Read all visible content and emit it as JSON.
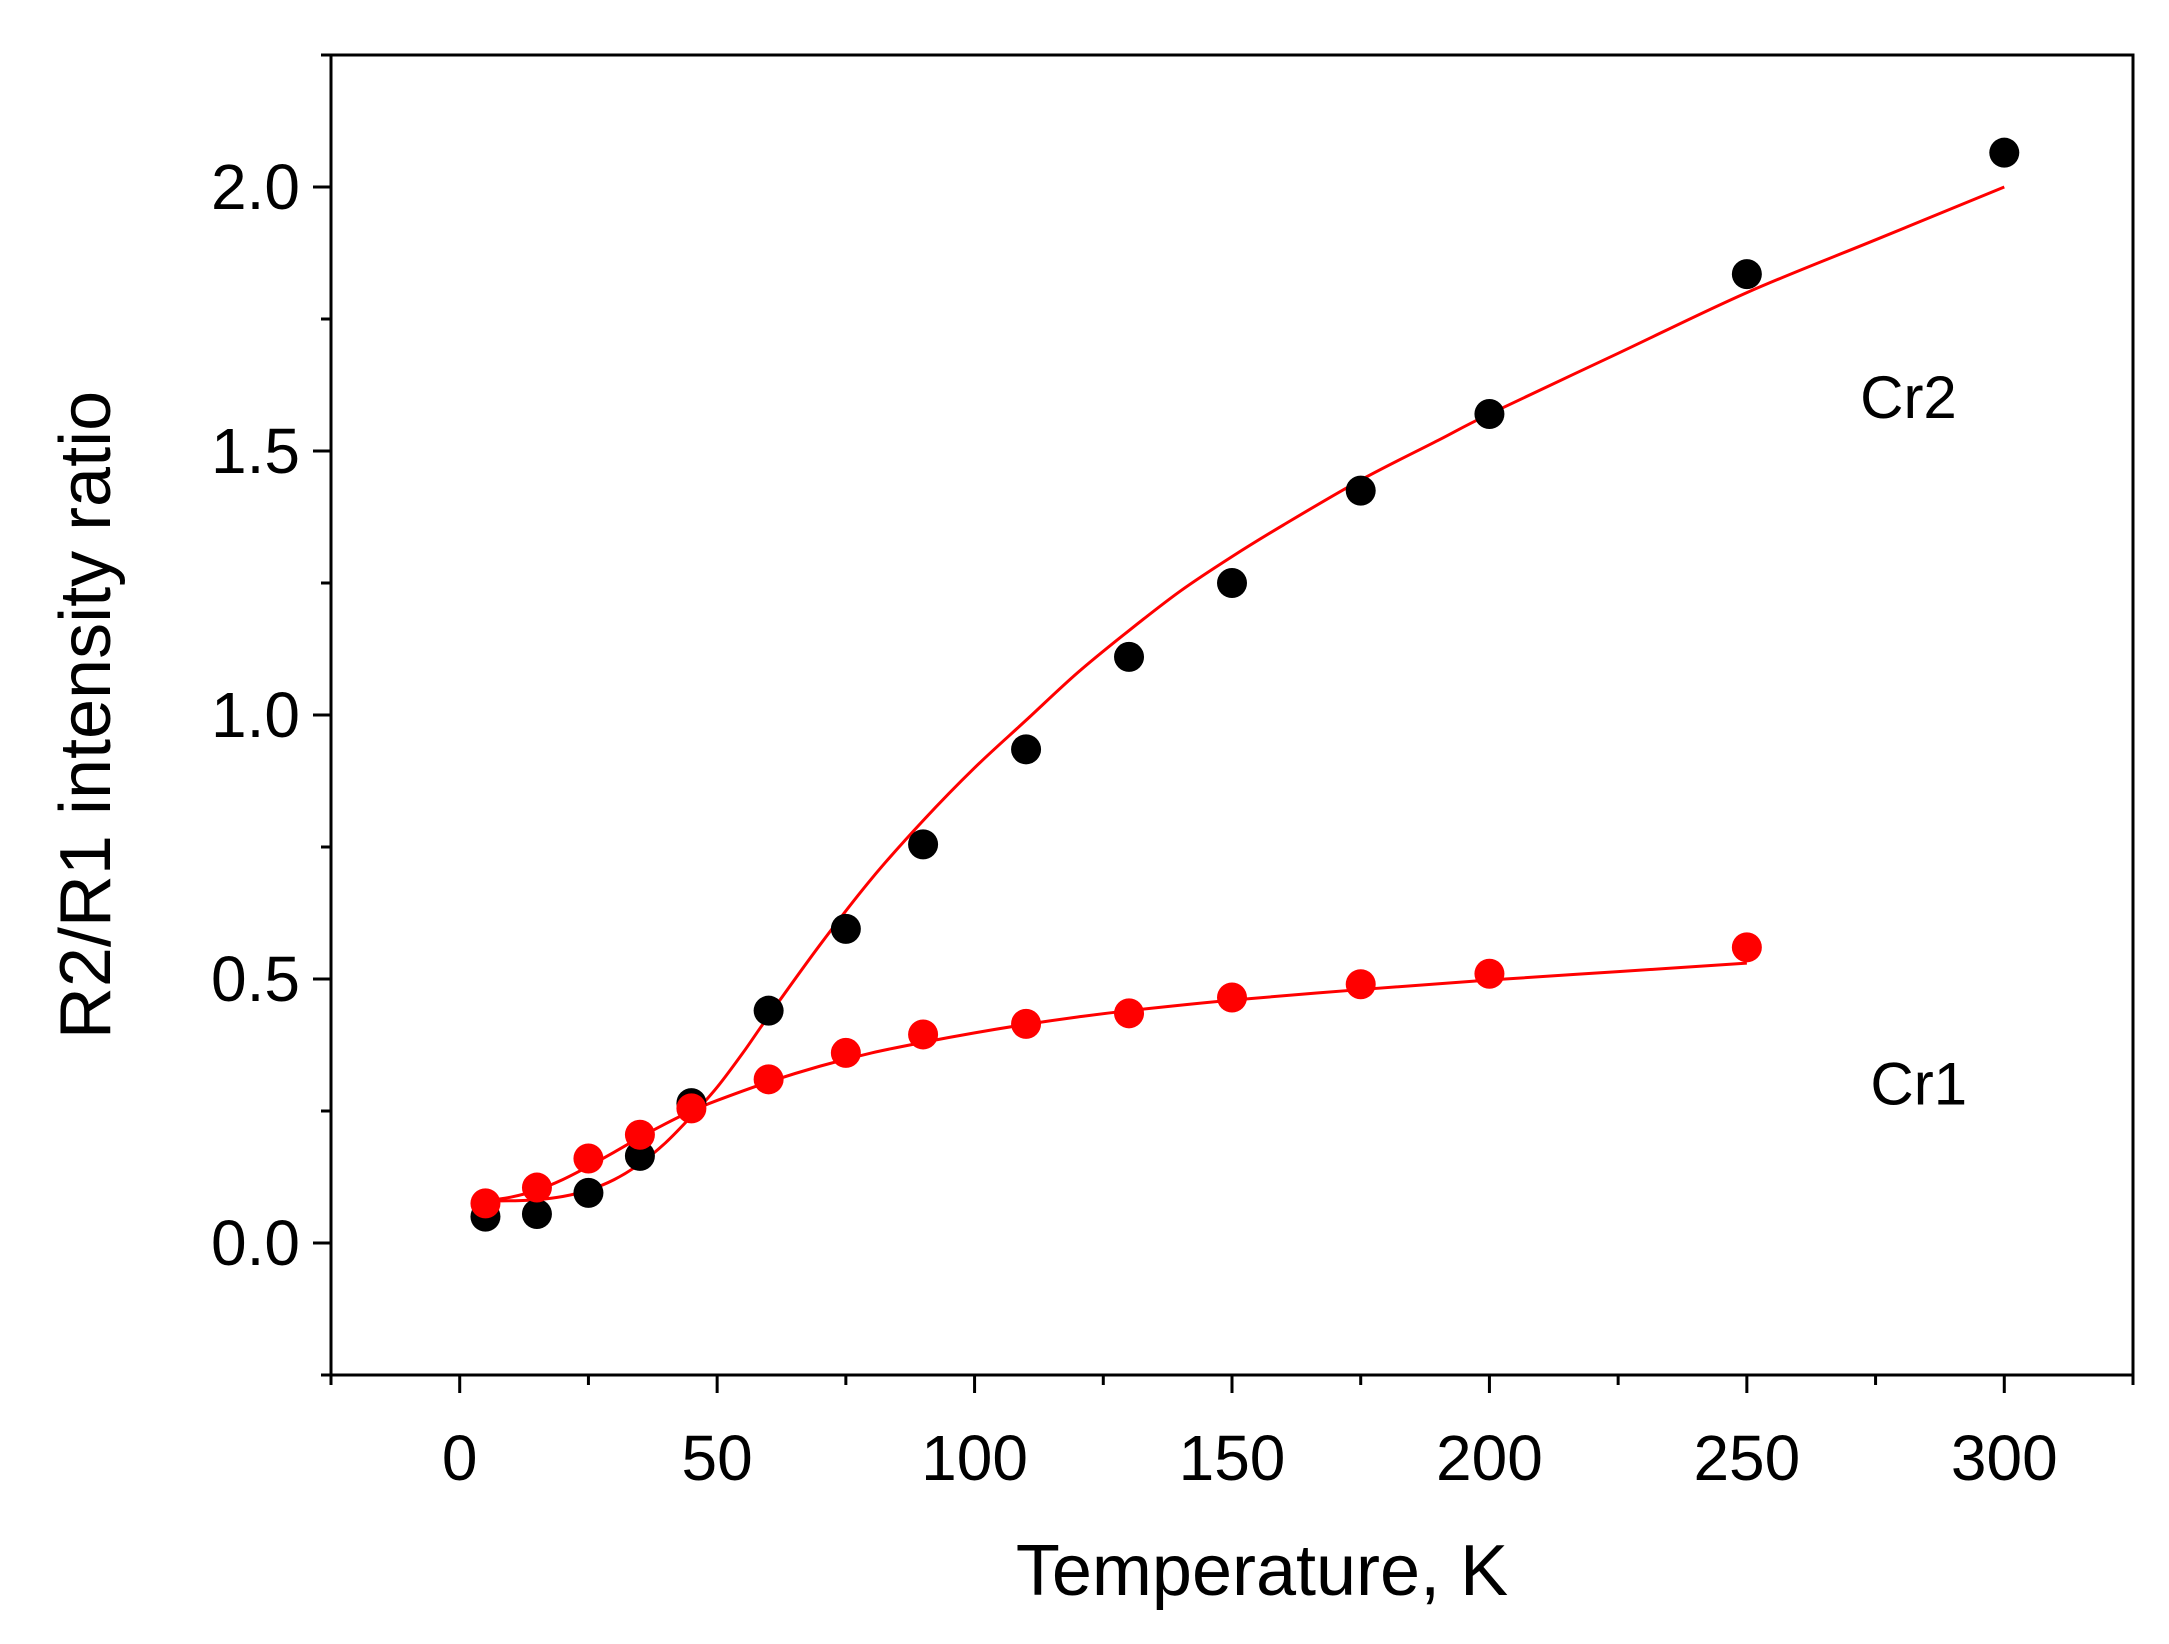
{
  "chart_data": {
    "type": "scatter",
    "title": "",
    "xlabel": "Temperature, K",
    "ylabel": "R2/R1 intensity ratio",
    "xlim": [
      -25,
      325
    ],
    "ylim": [
      -0.25,
      2.25
    ],
    "xticks": [
      0,
      50,
      100,
      150,
      200,
      250,
      300
    ],
    "xtick_labels": [
      "0",
      "50",
      "100",
      "150",
      "200",
      "250",
      "300"
    ],
    "yticks": [
      0.0,
      0.5,
      1.0,
      1.5,
      2.0
    ],
    "ytick_labels": [
      "0.0",
      "0.5",
      "1.0",
      "1.5",
      "2.0"
    ],
    "x_minor_ticks": [
      -25,
      25,
      75,
      125,
      175,
      225,
      275,
      325
    ],
    "y_minor_ticks": [
      -0.25,
      0.25,
      0.75,
      1.25,
      1.75,
      2.25
    ],
    "grid": false,
    "legend": "none",
    "series": [
      {
        "name": "Cr2",
        "marker_color": "#000000",
        "fit_color": "#ff0000",
        "x": [
          5,
          15,
          25,
          35,
          45,
          60,
          75,
          90,
          110,
          130,
          150,
          175,
          200,
          250,
          300
        ],
        "y": [
          0.05,
          0.055,
          0.095,
          0.165,
          0.265,
          0.44,
          0.595,
          0.755,
          0.935,
          1.11,
          1.25,
          1.425,
          1.57,
          1.835,
          2.065
        ],
        "fit_x": [
          5,
          10,
          15,
          20,
          25,
          30,
          35,
          40,
          45,
          50,
          55,
          60,
          70,
          80,
          90,
          100,
          110,
          120,
          130,
          140,
          150,
          160,
          175,
          190,
          200,
          225,
          250,
          275,
          300
        ],
        "fit_y": [
          0.08,
          0.08,
          0.082,
          0.088,
          0.1,
          0.12,
          0.15,
          0.19,
          0.24,
          0.295,
          0.36,
          0.43,
          0.565,
          0.69,
          0.8,
          0.9,
          0.99,
          1.08,
          1.16,
          1.235,
          1.3,
          1.36,
          1.445,
          1.52,
          1.57,
          1.685,
          1.8,
          1.9,
          2.0
        ]
      },
      {
        "name": "Cr1",
        "marker_color": "#ff0000",
        "fit_color": "#ff0000",
        "x": [
          5,
          15,
          25,
          35,
          45,
          60,
          75,
          90,
          110,
          130,
          150,
          175,
          200,
          250
        ],
        "y": [
          0.075,
          0.105,
          0.16,
          0.205,
          0.255,
          0.31,
          0.36,
          0.395,
          0.415,
          0.435,
          0.465,
          0.49,
          0.51,
          0.56
        ],
        "fit_x": [
          5,
          10,
          15,
          20,
          25,
          30,
          35,
          40,
          45,
          50,
          60,
          70,
          80,
          90,
          100,
          110,
          120,
          130,
          150,
          175,
          200,
          225,
          250
        ],
        "fit_y": [
          0.08,
          0.087,
          0.1,
          0.12,
          0.145,
          0.172,
          0.2,
          0.226,
          0.25,
          0.27,
          0.305,
          0.335,
          0.36,
          0.38,
          0.398,
          0.414,
          0.428,
          0.44,
          0.46,
          0.48,
          0.498,
          0.514,
          0.53
        ]
      }
    ],
    "annotations": [
      {
        "text": "Cr2",
        "x": 272,
        "y": 1.6
      },
      {
        "text": "Cr1",
        "x": 274,
        "y": 0.3
      }
    ]
  }
}
